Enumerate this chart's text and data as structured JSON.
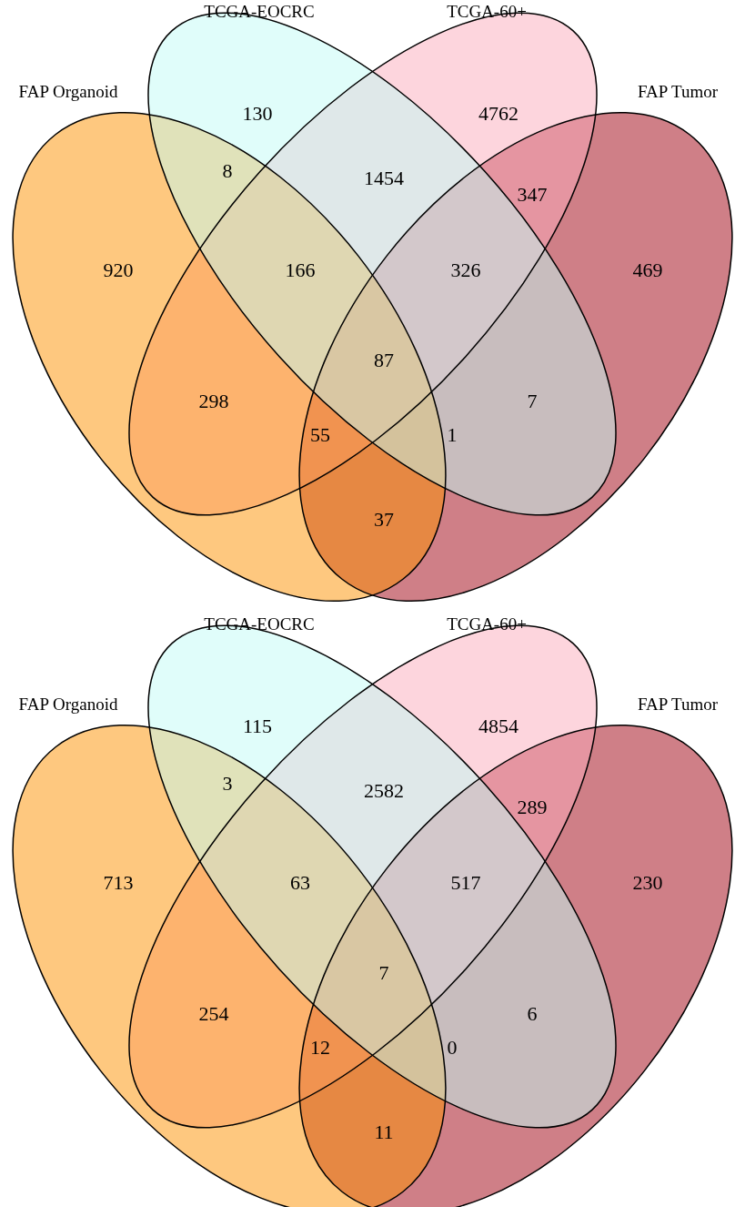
{
  "chart_data": [
    {
      "type": "other",
      "annotations": [
        "FAP Organoid",
        "TCGA-EOCRC",
        "TCGA-60+",
        "FAP Tumor"
      ],
      "categories": [
        null,
        null,
        null,
        null,
        null,
        null,
        null,
        null,
        null,
        null,
        null,
        null,
        null,
        null,
        null
      ],
      "values": [
        130,
        4762,
        8,
        1454,
        347,
        920,
        166,
        326,
        469,
        87,
        298,
        7,
        55,
        1,
        37
      ],
      "data_labels": true
    },
    {
      "type": "other",
      "annotations": [
        "FAP Organoid",
        "TCGA-EOCRC",
        "TCGA-60+",
        "FAP Tumor"
      ],
      "categories": [
        null,
        null,
        null,
        null,
        null,
        null,
        null,
        null,
        null,
        null,
        null,
        null,
        null,
        null,
        null
      ],
      "values": [
        115,
        4854,
        3,
        2582,
        289,
        713,
        63,
        517,
        230,
        7,
        254,
        6,
        12,
        0,
        11
      ],
      "data_labels": true
    }
  ]
}
